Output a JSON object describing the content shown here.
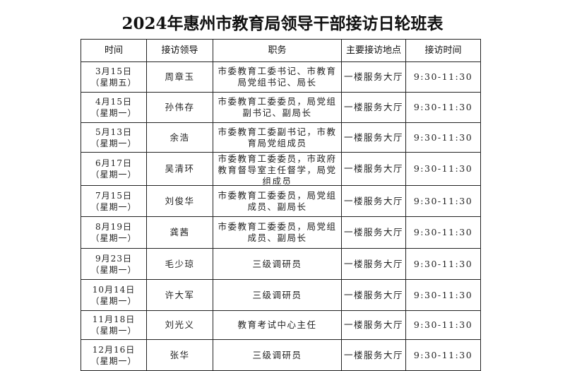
{
  "title": "2024年惠州市教育局领导干部接访日轮班表",
  "headers": [
    "时间",
    "接访领导",
    "职务",
    "主要接访地点",
    "接访时间"
  ],
  "rows": [
    {
      "date": "3月15日",
      "weekday": "（星期五）",
      "leader": "周章玉",
      "duty": "市委教育工委书记、市教育局党组书记、局长",
      "place": "一楼服务大厅",
      "time": "9:30-11:30"
    },
    {
      "date": "4月15日",
      "weekday": "（星期一）",
      "leader": "孙伟存",
      "duty": "市委教育工委委员，局党组副书记、副局长",
      "place": "一楼服务大厅",
      "time": "9:30-11:30"
    },
    {
      "date": "5月13日",
      "weekday": "（星期一）",
      "leader": "余浩",
      "duty": "市委教育工委副书记，市教育局党组成员",
      "place": "一楼服务大厅",
      "time": "9:30-11:30"
    },
    {
      "date": "6月17日",
      "weekday": "（星期一）",
      "leader": "吴清环",
      "duty": "市委教育工委委员，市政府教育督导室主任督学，局党组成员",
      "place": "一楼服务大厅",
      "time": "9:30-11:30"
    },
    {
      "date": "7月15日",
      "weekday": "（星期一）",
      "leader": "刘俊华",
      "duty": "市委教育工委委员，局党组成员、副局长",
      "place": "一楼服务大厅",
      "time": "9:30-11:30"
    },
    {
      "date": "8月19日",
      "weekday": "（星期一）",
      "leader": "龚茜",
      "duty": "市委教育工委委员，局党组成员、副局长",
      "place": "一楼服务大厅",
      "time": "9:30-11:30"
    },
    {
      "date": "9月23日",
      "weekday": "（星期一）",
      "leader": "毛少琼",
      "duty": "三级调研员",
      "place": "一楼服务大厅",
      "time": "9:30-11:30"
    },
    {
      "date": "10月14日",
      "weekday": "（星期一）",
      "leader": "许大军",
      "duty": "三级调研员",
      "place": "一楼服务大厅",
      "time": "9:30-11:30"
    },
    {
      "date": "11月18日",
      "weekday": "（星期一）",
      "leader": "刘光义",
      "duty": "教育考试中心主任",
      "place": "一楼服务大厅",
      "time": "9:30-11:30"
    },
    {
      "date": "12月16日",
      "weekday": "（星期一）",
      "leader": "张华",
      "duty": "三级调研员",
      "place": "一楼服务大厅",
      "time": "9:30-11:30"
    }
  ]
}
